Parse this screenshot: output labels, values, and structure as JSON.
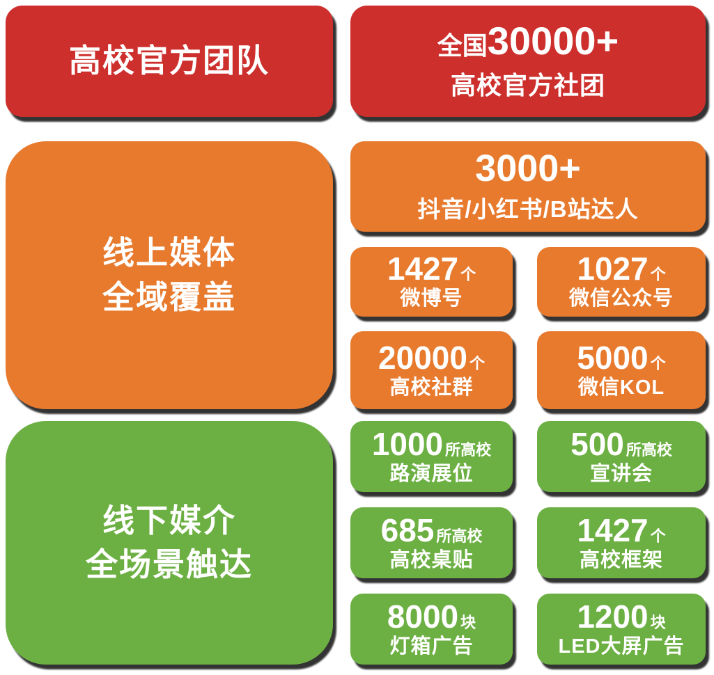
{
  "colors": {
    "red": "#CD2F2D",
    "orange": "#E87A2E",
    "green": "#6CB043",
    "text": "#FFFFFF",
    "shadow": "rgba(0,0,0,0.8)"
  },
  "sections": {
    "official": {
      "title": "高校官方团队",
      "summary": {
        "prefix": "全国",
        "number": "30000+",
        "label": "高校官方社团"
      }
    },
    "online": {
      "title_line1": "线上媒体",
      "title_line2": "全域覆盖",
      "feature": {
        "number": "3000+",
        "label": "抖音/小红书/B站达人"
      },
      "cells": [
        {
          "number": "1427",
          "unit": "个",
          "label": "微博号"
        },
        {
          "number": "1027",
          "unit": "个",
          "label": "微信公众号"
        },
        {
          "number": "20000",
          "unit": "个",
          "label": "高校社群"
        },
        {
          "number": "5000",
          "unit": "个",
          "label": "微信KOL"
        }
      ]
    },
    "offline": {
      "title_line1": "线下媒介",
      "title_line2": "全场景触达",
      "cells": [
        {
          "number": "1000",
          "unit": "所高校",
          "label": "路演展位"
        },
        {
          "number": "500",
          "unit": "所高校",
          "label": "宣讲会"
        },
        {
          "number": "685",
          "unit": "所高校",
          "label": "高校桌贴"
        },
        {
          "number": "1427",
          "unit": "个",
          "label": "高校框架"
        },
        {
          "number": "8000",
          "unit": "块",
          "label": "灯箱广告"
        },
        {
          "number": "1200",
          "unit": "块",
          "label": "LED大屏广告"
        }
      ]
    }
  }
}
